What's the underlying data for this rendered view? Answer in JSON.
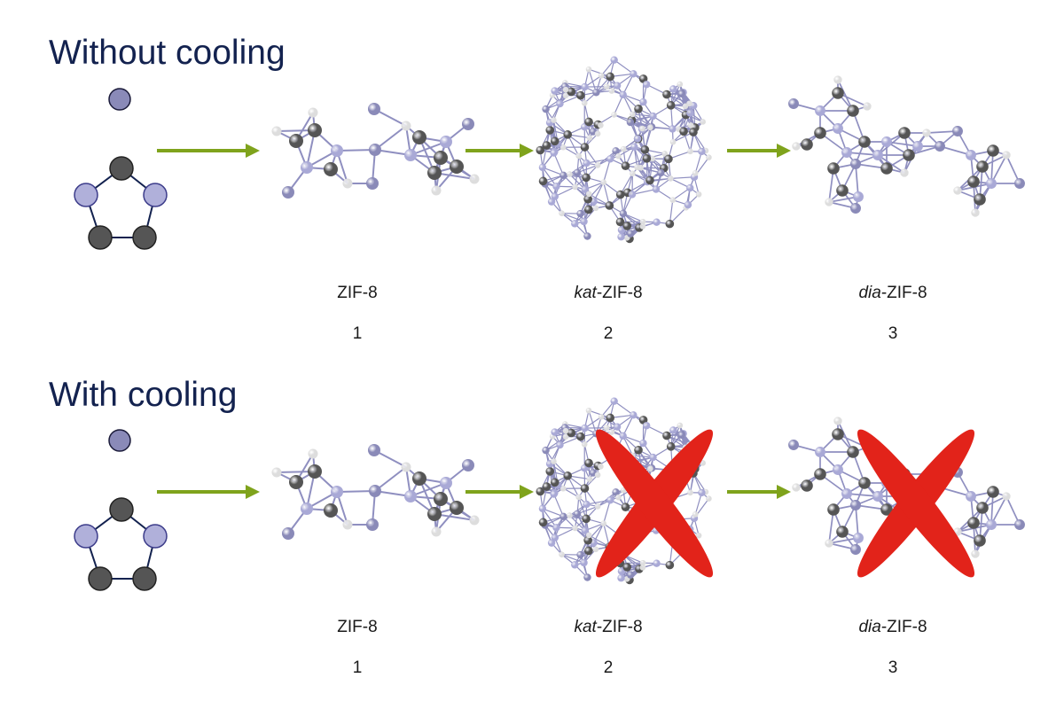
{
  "colors": {
    "title": "#13224f",
    "arrow": "#7fa31c",
    "metal": "#8a8ab8",
    "nitrogen": "#a9a9d6",
    "carbon": "#555555",
    "hydrogen": "#dddddd",
    "cross": "#e2231a"
  },
  "rows": [
    {
      "title": "Without cooling",
      "stages": [
        {
          "prefix": "",
          "name": "ZIF-8",
          "number": "1",
          "crossed": false
        },
        {
          "prefix": "kat",
          "name": "-ZIF-8",
          "number": "2",
          "crossed": false
        },
        {
          "prefix": "dia",
          "name": "-ZIF-8",
          "number": "3",
          "crossed": false
        }
      ]
    },
    {
      "title": "With cooling",
      "stages": [
        {
          "prefix": "",
          "name": "ZIF-8",
          "number": "1",
          "crossed": false
        },
        {
          "prefix": "kat",
          "name": "-ZIF-8",
          "number": "2",
          "crossed": true
        },
        {
          "prefix": "dia",
          "name": "-ZIF-8",
          "number": "3",
          "crossed": true
        }
      ]
    }
  ]
}
